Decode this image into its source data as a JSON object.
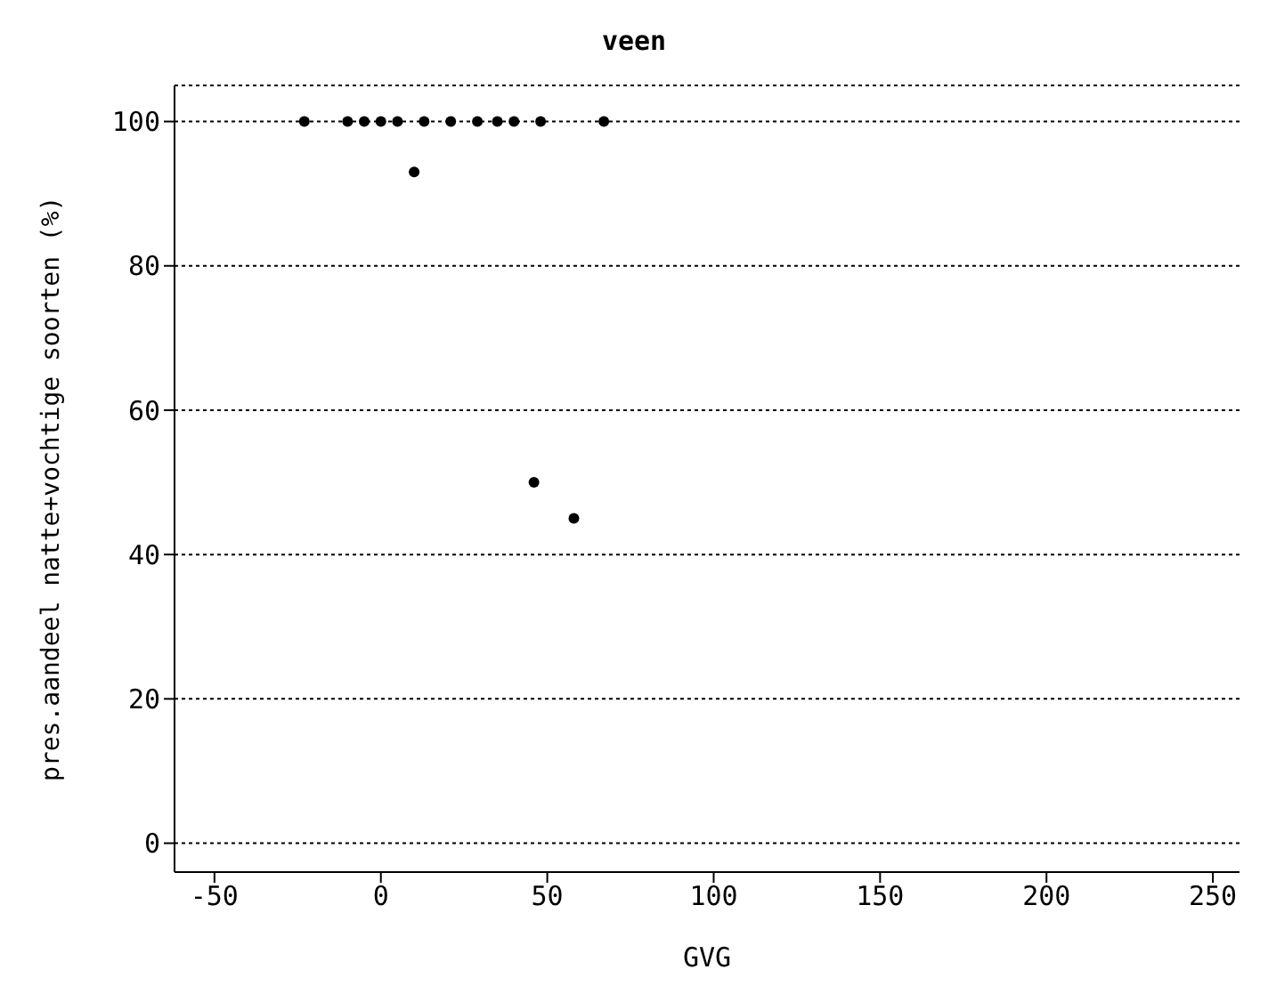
{
  "chart_data": {
    "type": "scatter",
    "title": "veen",
    "xlabel": "GVG",
    "ylabel": "pres.aandeel natte+vochtige soorten (%)",
    "x": [
      -23,
      -10,
      -5,
      0,
      5,
      13,
      21,
      29,
      35,
      40,
      48,
      67,
      10,
      46,
      58
    ],
    "values": [
      100,
      100,
      100,
      100,
      100,
      100,
      100,
      100,
      100,
      100,
      100,
      100,
      93,
      50,
      45
    ],
    "color": "#000000",
    "marker": "circle",
    "xlim": [
      -62,
      258
    ],
    "xticks": [
      -50,
      0,
      50,
      100,
      150,
      200,
      250
    ],
    "ylim": [
      -4,
      105
    ],
    "yticks": [
      0,
      20,
      40,
      60,
      80,
      100
    ],
    "grid": "y"
  }
}
